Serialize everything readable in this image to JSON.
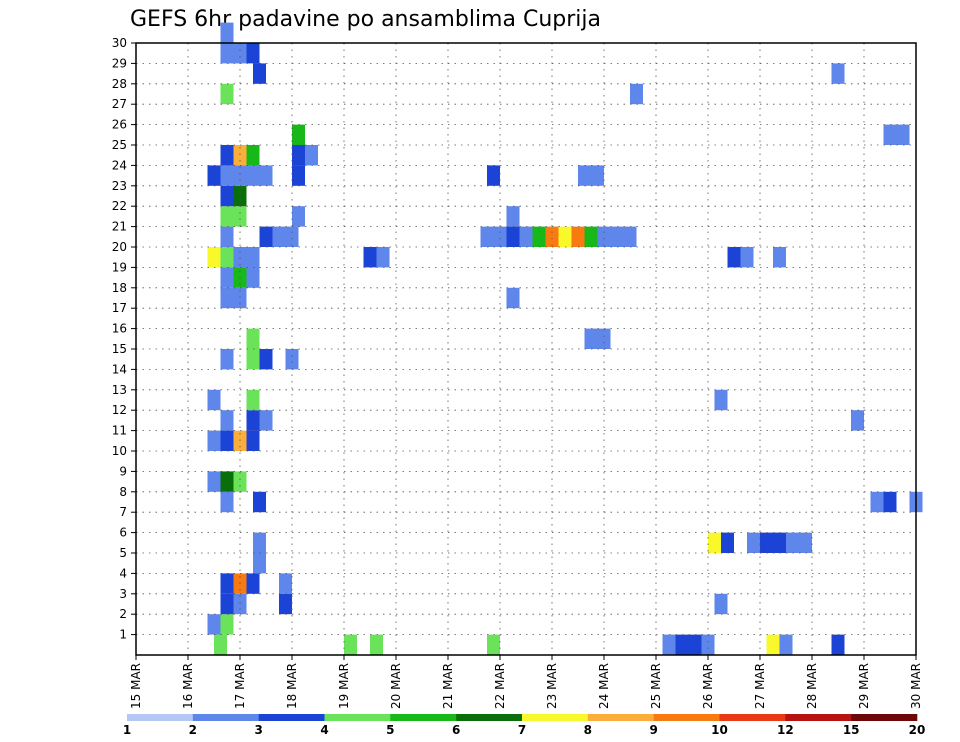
{
  "chart_data": {
    "type": "heatmap",
    "title": "GEFS 6hr padavine po ansamblima Cuprija",
    "xlabel": "",
    "ylabel": "",
    "x_tick_labels": [
      "15 MAR",
      "16 MAR",
      "17 MAR",
      "18 MAR",
      "19 MAR",
      "20 MAR",
      "21 MAR",
      "22 MAR",
      "23 MAR",
      "24 MAR",
      "25 MAR",
      "26 MAR",
      "27 MAR",
      "28 MAR",
      "29 MAR",
      "30 MAR"
    ],
    "y_tick_labels": [
      "1",
      "2",
      "3",
      "4",
      "5",
      "6",
      "7",
      "8",
      "9",
      "10",
      "11",
      "12",
      "13",
      "14",
      "15",
      "16",
      "17",
      "18",
      "19",
      "20",
      "21",
      "22",
      "23",
      "24",
      "25",
      "26",
      "27",
      "28",
      "29",
      "30"
    ],
    "xlim": [
      0,
      60
    ],
    "ylim": [
      0,
      30
    ],
    "time_step_hours": 6,
    "grid": true,
    "legend_placement": "bottom",
    "legend": {
      "colors": [
        "#b5c8f5",
        "#5f86ea",
        "#1b44d6",
        "#6ae35a",
        "#18b818",
        "#0a6e0a",
        "#f8f82a",
        "#fcae3a",
        "#fa7a12",
        "#e83a14",
        "#b51410",
        "#6e0808"
      ],
      "labels": [
        "1",
        "2",
        "3",
        "4",
        "5",
        "6",
        "7",
        "8",
        "9",
        "10",
        "12",
        "15",
        "20"
      ]
    },
    "cells": [
      [
        6.5,
        0,
        3
      ],
      [
        16.5,
        0,
        3
      ],
      [
        18.5,
        0,
        3
      ],
      [
        27.5,
        0,
        3
      ],
      [
        41,
        0,
        1
      ],
      [
        42,
        0,
        2
      ],
      [
        43,
        0,
        2
      ],
      [
        44,
        0,
        1
      ],
      [
        49,
        0,
        6
      ],
      [
        50,
        0,
        1
      ],
      [
        54,
        0,
        2
      ],
      [
        6,
        1,
        1
      ],
      [
        7,
        1,
        3
      ],
      [
        7,
        2,
        2
      ],
      [
        8,
        2,
        1
      ],
      [
        11.5,
        2,
        2
      ],
      [
        45,
        2,
        1
      ],
      [
        7,
        3,
        2
      ],
      [
        8,
        3,
        8
      ],
      [
        9,
        3,
        2
      ],
      [
        11.5,
        3,
        1
      ],
      [
        9.5,
        4,
        1
      ],
      [
        9.5,
        5,
        1
      ],
      [
        44.5,
        5,
        6
      ],
      [
        45.5,
        5,
        2
      ],
      [
        47.5,
        5,
        1
      ],
      [
        48.5,
        5,
        2
      ],
      [
        49.5,
        5,
        2
      ],
      [
        50.5,
        5,
        1
      ],
      [
        51.5,
        5,
        1
      ],
      [
        7,
        7,
        1
      ],
      [
        9.5,
        7,
        2
      ],
      [
        57,
        7,
        1
      ],
      [
        58,
        7,
        2
      ],
      [
        60,
        7,
        1
      ],
      [
        6,
        8,
        1
      ],
      [
        7,
        8,
        5
      ],
      [
        8,
        8,
        3
      ],
      [
        6,
        10,
        1
      ],
      [
        7,
        10,
        2
      ],
      [
        8,
        10,
        7
      ],
      [
        9,
        10,
        2
      ],
      [
        7,
        11,
        1
      ],
      [
        9,
        11,
        2
      ],
      [
        10,
        11,
        1
      ],
      [
        55.5,
        11,
        1
      ],
      [
        6,
        12,
        1
      ],
      [
        9,
        12,
        3
      ],
      [
        45,
        12,
        1
      ],
      [
        7,
        14,
        1
      ],
      [
        9,
        14,
        3
      ],
      [
        10,
        14,
        2
      ],
      [
        12,
        14,
        1
      ],
      [
        9,
        15,
        3
      ],
      [
        35,
        15,
        1
      ],
      [
        36,
        15,
        1
      ],
      [
        7,
        17,
        1
      ],
      [
        8,
        17,
        1
      ],
      [
        29,
        17,
        1
      ],
      [
        7,
        18,
        1
      ],
      [
        8,
        18,
        4
      ],
      [
        9,
        18,
        1
      ],
      [
        9,
        19,
        1
      ],
      [
        6,
        19,
        6
      ],
      [
        7,
        19,
        3
      ],
      [
        8,
        19,
        1
      ],
      [
        9,
        19,
        1
      ],
      [
        18,
        19,
        2
      ],
      [
        19,
        19,
        1
      ],
      [
        46,
        19,
        2
      ],
      [
        47,
        19,
        1
      ],
      [
        49.5,
        19,
        1
      ],
      [
        7,
        20,
        1
      ],
      [
        10,
        20,
        2
      ],
      [
        11,
        20,
        1
      ],
      [
        12,
        20,
        1
      ],
      [
        27,
        20,
        1
      ],
      [
        28,
        20,
        1
      ],
      [
        29,
        20,
        2
      ],
      [
        30,
        20,
        1
      ],
      [
        31,
        20,
        4
      ],
      [
        32,
        20,
        8
      ],
      [
        33,
        20,
        6
      ],
      [
        34,
        20,
        8
      ],
      [
        35,
        20,
        4
      ],
      [
        36,
        20,
        1
      ],
      [
        37,
        20,
        1
      ],
      [
        38,
        20,
        1
      ],
      [
        29,
        21,
        1
      ],
      [
        7,
        21,
        3
      ],
      [
        8,
        21,
        3
      ],
      [
        12.5,
        21,
        1
      ],
      [
        7,
        22,
        2
      ],
      [
        8,
        22,
        5
      ],
      [
        6,
        23,
        2
      ],
      [
        7,
        23,
        1
      ],
      [
        8,
        23,
        1
      ],
      [
        9,
        23,
        1
      ],
      [
        10,
        23,
        1
      ],
      [
        12.5,
        23,
        2
      ],
      [
        27.5,
        23,
        2
      ],
      [
        34.5,
        23,
        1
      ],
      [
        35.5,
        23,
        1
      ],
      [
        7,
        24,
        2
      ],
      [
        8,
        24,
        7
      ],
      [
        9,
        24,
        4
      ],
      [
        12.5,
        24,
        2
      ],
      [
        13.5,
        24,
        1
      ],
      [
        12.5,
        25,
        4
      ],
      [
        58,
        25,
        1
      ],
      [
        59,
        25,
        1
      ],
      [
        38.5,
        27,
        1
      ],
      [
        7,
        27,
        3
      ],
      [
        9.5,
        28,
        2
      ],
      [
        54,
        28,
        1
      ],
      [
        7,
        29,
        1
      ],
      [
        8,
        29,
        1
      ],
      [
        9,
        29,
        2
      ],
      [
        7,
        30,
        1
      ]
    ]
  }
}
